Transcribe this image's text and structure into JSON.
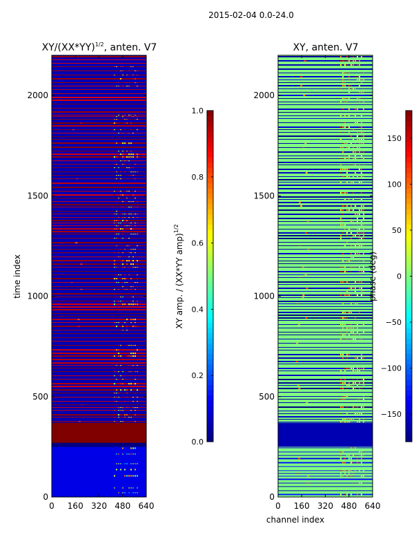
{
  "figure_title": "2015-02-04 0.0-24.0",
  "chart_data": [
    {
      "type": "heatmap",
      "title_base": "XY/(XX*YY)",
      "title_sup": "1/2",
      "title_suffix": ", anten. V7",
      "xlabel": "",
      "ylabel": "time index",
      "xlim": [
        0,
        640
      ],
      "ylim": [
        0,
        2200
      ],
      "xticks": [
        0,
        160,
        320,
        480,
        640
      ],
      "yticks": [
        0,
        500,
        1000,
        1500,
        2000
      ],
      "colormap": "jet",
      "colorbar": {
        "label_base": "XY amp. / (XX*YY amp)",
        "label_sup": "1/2",
        "range": [
          0.0,
          1.0
        ],
        "ticks": [
          0.0,
          0.2,
          0.4,
          0.6,
          0.8,
          1.0
        ],
        "tick_labels": [
          "0.0",
          "0.2",
          "0.4",
          "0.6",
          "0.8",
          "1.0"
        ]
      },
      "background_color": "#00008c",
      "rows": [
        {
          "from": 0,
          "to": 250,
          "value": 0.1,
          "pattern": "sparse",
          "band_value": 0.55
        },
        {
          "from": 250,
          "to": 270,
          "value": 0.0,
          "pattern": "none"
        },
        {
          "from": 270,
          "to": 370,
          "value": 1.0,
          "pattern": "solid"
        },
        {
          "from": 370,
          "to": 1900,
          "value": 0.05,
          "pattern": "striped",
          "stripe_value": 0.95,
          "band_value": 0.75
        },
        {
          "from": 1900,
          "to": 2200,
          "value": 0.05,
          "pattern": "striped",
          "stripe_value": 0.95,
          "band_value": 0.85
        }
      ]
    },
    {
      "type": "heatmap",
      "title_base": "XY, anten. V7",
      "xlabel": "channel index",
      "ylabel": "",
      "xlim": [
        0,
        640
      ],
      "ylim": [
        0,
        2200
      ],
      "xticks": [
        0,
        160,
        320,
        480,
        640
      ],
      "yticks": [
        0,
        500,
        1000,
        1500,
        2000
      ],
      "colormap": "jet",
      "colorbar": {
        "label": "phase (deg)",
        "range": [
          -180,
          180
        ],
        "ticks": [
          -150,
          -100,
          -50,
          0,
          50,
          100,
          150
        ],
        "tick_labels": [
          "−150",
          "−100",
          "−50",
          "0",
          "50",
          "100",
          "150"
        ]
      },
      "background_color": "#80ff80",
      "rows": [
        {
          "from": 0,
          "to": 250,
          "value": 0.5,
          "pattern": "striped",
          "stripe_value": 0.1,
          "band_value": 0.7
        },
        {
          "from": 250,
          "to": 370,
          "value": 0.05,
          "pattern": "solid"
        },
        {
          "from": 370,
          "to": 2200,
          "value": 0.5,
          "pattern": "striped",
          "stripe_value": 0.05,
          "band_value": 0.8
        }
      ]
    }
  ]
}
